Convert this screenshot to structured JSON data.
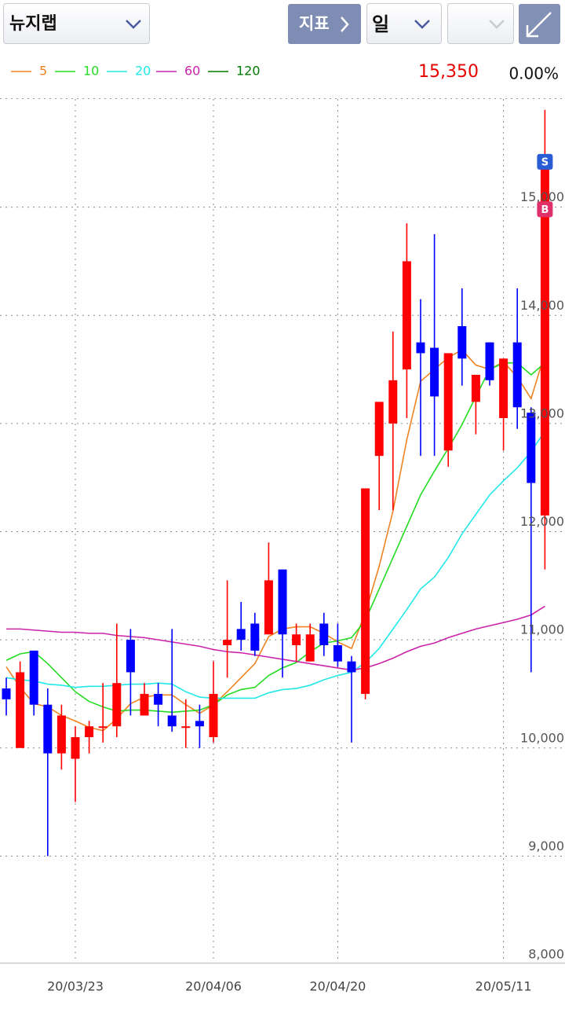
{
  "toolbar": {
    "stock": "뉴지랩",
    "indicator_button": "지표",
    "period": "일"
  },
  "chart_data": {
    "type": "candlestick",
    "categories": [
      null,
      null,
      null,
      null,
      null,
      "20/03/23",
      null,
      null,
      null,
      null,
      null,
      null,
      null,
      null,
      null,
      "20/04/06",
      null,
      null,
      null,
      null,
      null,
      null,
      null,
      null,
      "20/04/20",
      null,
      null,
      null,
      null,
      null,
      null,
      null,
      null,
      null,
      null,
      null,
      "20/05/11",
      null,
      null,
      null
    ],
    "open": [
      10550,
      10000,
      10900,
      10400,
      9950,
      9900,
      10100,
      10200,
      10200,
      11000,
      10300,
      10500,
      10300,
      10200,
      10250,
      10100,
      10950,
      11100,
      11150,
      11050,
      11650,
      10950,
      10800,
      11150,
      10950,
      10800,
      10500,
      12700,
      13000,
      13500,
      13750,
      13700,
      12750,
      13900,
      13200,
      13750,
      13050,
      13750,
      13100,
      12150
    ],
    "high": [
      10650,
      10800,
      10900,
      10550,
      10400,
      10200,
      10250,
      10600,
      11150,
      11100,
      10600,
      10600,
      11100,
      10450,
      10400,
      10800,
      11550,
      11350,
      11250,
      11900,
      11650,
      11150,
      11150,
      11250,
      11150,
      10850,
      12400,
      13200,
      13850,
      14850,
      14150,
      14750,
      13650,
      14250,
      13450,
      13750,
      13600,
      14250,
      13150,
      15900
    ],
    "low": [
      10300,
      10000,
      10300,
      9000,
      9800,
      9500,
      9950,
      10050,
      10100,
      10300,
      10300,
      10200,
      10150,
      10000,
      10000,
      10050,
      10650,
      10900,
      10850,
      11050,
      10650,
      10800,
      10800,
      10850,
      10750,
      10050,
      10450,
      12200,
      12200,
      13050,
      12700,
      12700,
      12600,
      13350,
      12900,
      13350,
      12750,
      12950,
      10700,
      11650
    ],
    "close": [
      10450,
      10700,
      10400,
      9950,
      10300,
      10100,
      10200,
      10200,
      10600,
      10700,
      10500,
      10400,
      10200,
      10200,
      10200,
      10500,
      11000,
      11000,
      10900,
      11550,
      11050,
      11050,
      11050,
      10950,
      10800,
      10700,
      12400,
      13200,
      13400,
      14500,
      13650,
      13250,
      13650,
      13600,
      13450,
      13400,
      13600,
      13150,
      12450,
      15350
    ],
    "up_color": "#ff0000",
    "down_color": "#0000ff",
    "series": [
      {
        "name": "5",
        "color": "#f08322",
        "values": [
          10750,
          10560,
          10410,
          10380,
          10300,
          10250,
          10190,
          10160,
          10270,
          10410,
          10470,
          10490,
          10490,
          10400,
          10320,
          10400,
          10520,
          10650,
          10780,
          11030,
          11100,
          11120,
          11120,
          11060,
          10980,
          10920,
          11250,
          11680,
          12190,
          12850,
          13390,
          13500,
          13610,
          13680,
          13540,
          13500,
          13570,
          13430,
          13230,
          13650
        ]
      },
      {
        "name": "10",
        "color": "#22dd22",
        "values": [
          10810,
          10870,
          10890,
          10780,
          10650,
          10520,
          10430,
          10380,
          10340,
          10350,
          10350,
          10340,
          10330,
          10340,
          10350,
          10400,
          10490,
          10540,
          10560,
          10670,
          10740,
          10790,
          10890,
          10970,
          10990,
          11020,
          11180,
          11470,
          11760,
          12050,
          12340,
          12560,
          12770,
          12990,
          13250,
          13500,
          13560,
          13560,
          13450,
          13560
        ]
      },
      {
        "name": "20",
        "color": "#22e8e8",
        "values": [
          10650,
          10630,
          10620,
          10590,
          10580,
          10560,
          10570,
          10570,
          10580,
          10590,
          10590,
          10600,
          10590,
          10520,
          10470,
          10460,
          10460,
          10460,
          10460,
          10510,
          10540,
          10550,
          10580,
          10630,
          10670,
          10700,
          10790,
          10920,
          11100,
          11280,
          11470,
          11580,
          11760,
          11980,
          12160,
          12340,
          12470,
          12590,
          12740,
          12930
        ]
      },
      {
        "name": "60",
        "color": "#cc22aa",
        "values": [
          11100,
          11100,
          11090,
          11080,
          11070,
          11070,
          11060,
          11060,
          11040,
          11030,
          11020,
          11000,
          10980,
          10960,
          10940,
          10910,
          10890,
          10880,
          10860,
          10840,
          10820,
          10800,
          10780,
          10760,
          10740,
          10720,
          10740,
          10780,
          10830,
          10890,
          10940,
          10970,
          11020,
          11060,
          11100,
          11130,
          11160,
          11190,
          11230,
          11310
        ]
      },
      {
        "name": "120",
        "color": "#007a00",
        "values": [
          null,
          null,
          null,
          null,
          null,
          null,
          null,
          null,
          null,
          null,
          null,
          null,
          null,
          null,
          null,
          null,
          null,
          null,
          null,
          null,
          null,
          null,
          null,
          null,
          null,
          null,
          null,
          null,
          null,
          null,
          null,
          null,
          null,
          null,
          null,
          null,
          null,
          null,
          null,
          null
        ]
      }
    ],
    "last_price": {
      "value": 15350,
      "label": "15,350"
    },
    "change": "0.00%",
    "signals": [
      {
        "label": "S",
        "index": 39,
        "value": 15420,
        "color": "#2a5cd6"
      },
      {
        "label": "B",
        "index": 39,
        "value": 14980,
        "color": "#e0306a"
      }
    ],
    "ylim": [
      8000,
      16000
    ],
    "yticks": [
      {
        "value": 8000,
        "label": "8,000"
      },
      {
        "value": 9000,
        "label": "9,000"
      },
      {
        "value": 10000,
        "label": "10,000"
      },
      {
        "value": 11000,
        "label": "11,000"
      },
      {
        "value": 12000,
        "label": "12,000"
      },
      {
        "value": 13000,
        "label": "13,000"
      },
      {
        "value": 14000,
        "label": "14,000"
      },
      {
        "value": 15000,
        "label": "15,000"
      }
    ],
    "grid": true
  }
}
